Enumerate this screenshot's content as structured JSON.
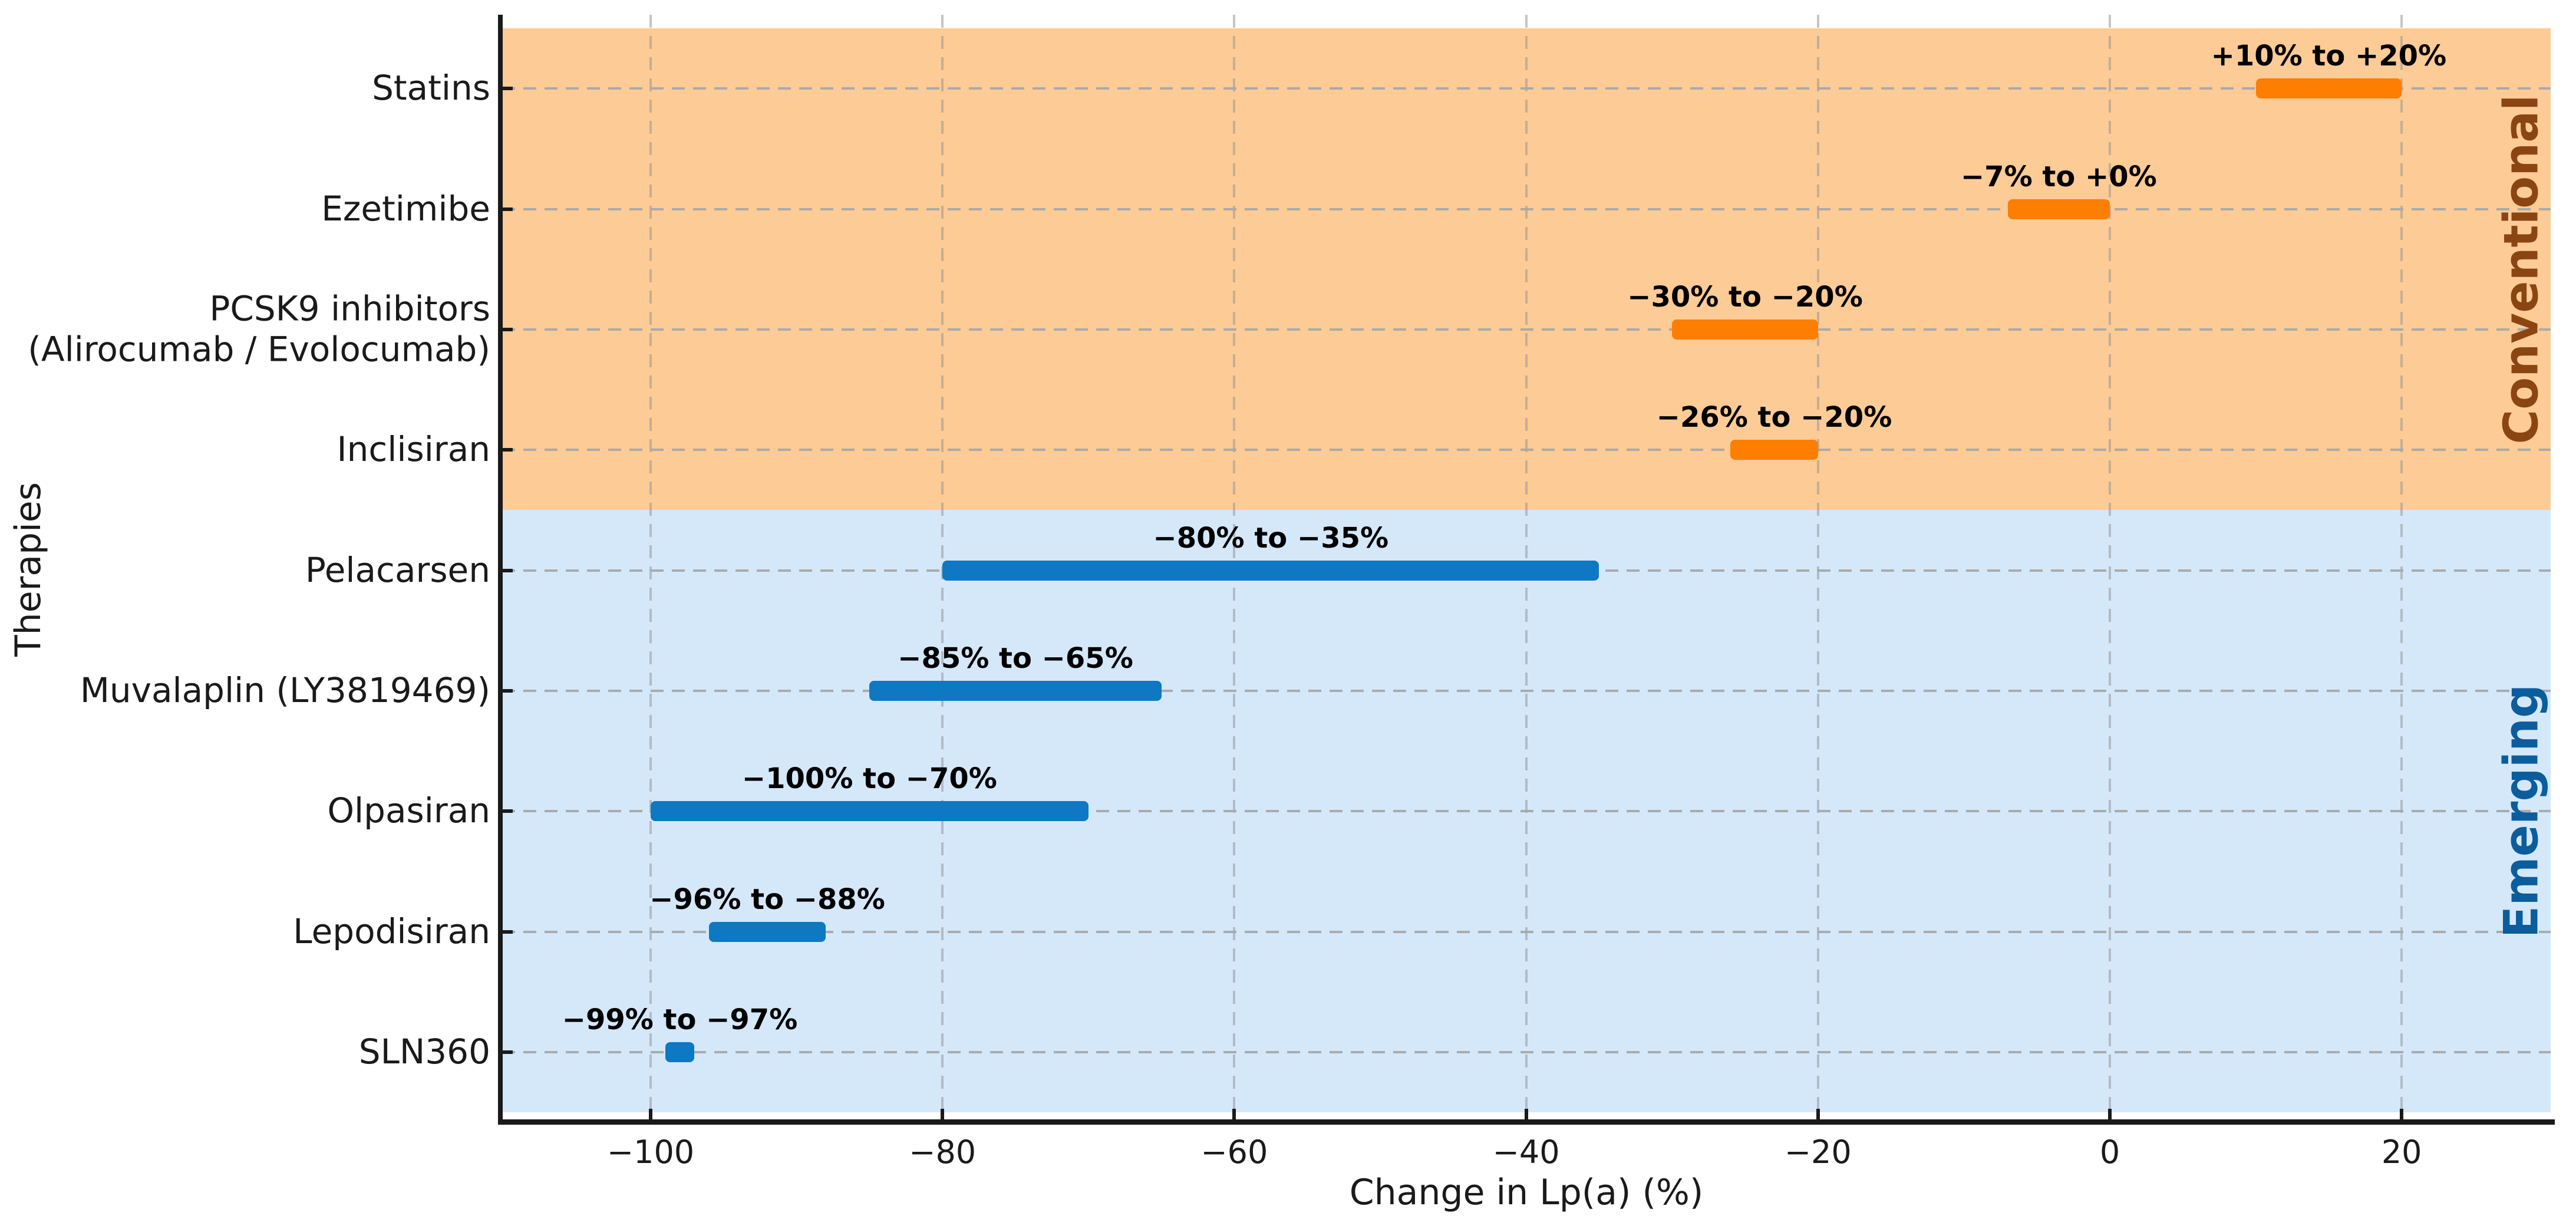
{
  "chart_data": {
    "type": "bar",
    "orientation": "horizontal-range",
    "title": "",
    "xlabel": "Change in Lp(a) (%)",
    "ylabel": "Therapies",
    "xlim": [
      -110.2,
      30.2
    ],
    "x_ticks": [
      -100,
      -80,
      -60,
      -40,
      -20,
      0,
      20
    ],
    "x_tick_labels": [
      "−100",
      "−80",
      "−60",
      "−40",
      "−20",
      "0",
      "20"
    ],
    "grid": true,
    "legend_position": "none",
    "groups": [
      {
        "name": "Conventional",
        "row_start": 0,
        "row_end": 3,
        "band_color": "#fdcb96",
        "bar_color": "#fd7e01",
        "label_color": "#8b4513"
      },
      {
        "name": "Emerging",
        "row_start": 4,
        "row_end": 8,
        "band_color": "#d4e8fa",
        "bar_color": "#0e78c2",
        "label_color": "#0b5d9d"
      }
    ],
    "bars": [
      {
        "category": "Statins",
        "group": "Conventional",
        "low": 10,
        "high": 20,
        "annotation": "+10% to +20%"
      },
      {
        "category": "Ezetimibe",
        "group": "Conventional",
        "low": -7,
        "high": 0,
        "annotation": "−7% to +0%"
      },
      {
        "category": "PCSK9 inhibitors\n(Alirocumab / Evolocumab)",
        "group": "Conventional",
        "low": -30,
        "high": -20,
        "annotation": "−30% to −20%"
      },
      {
        "category": "Inclisiran",
        "group": "Conventional",
        "low": -26,
        "high": -20,
        "annotation": "−26% to −20%"
      },
      {
        "category": "Pelacarsen",
        "group": "Emerging",
        "low": -80,
        "high": -35,
        "annotation": "−80% to −35%"
      },
      {
        "category": "Muvalaplin (LY3819469)",
        "group": "Emerging",
        "low": -85,
        "high": -65,
        "annotation": "−85% to −65%"
      },
      {
        "category": "Olpasiran",
        "group": "Emerging",
        "low": -100,
        "high": -70,
        "annotation": "−100% to −70%"
      },
      {
        "category": "Lepodisiran",
        "group": "Emerging",
        "low": -96,
        "high": -88,
        "annotation": "−96% to −88%"
      },
      {
        "category": "SLN360",
        "group": "Emerging",
        "low": -99,
        "high": -97,
        "annotation": "−99% to −97%"
      }
    ]
  }
}
